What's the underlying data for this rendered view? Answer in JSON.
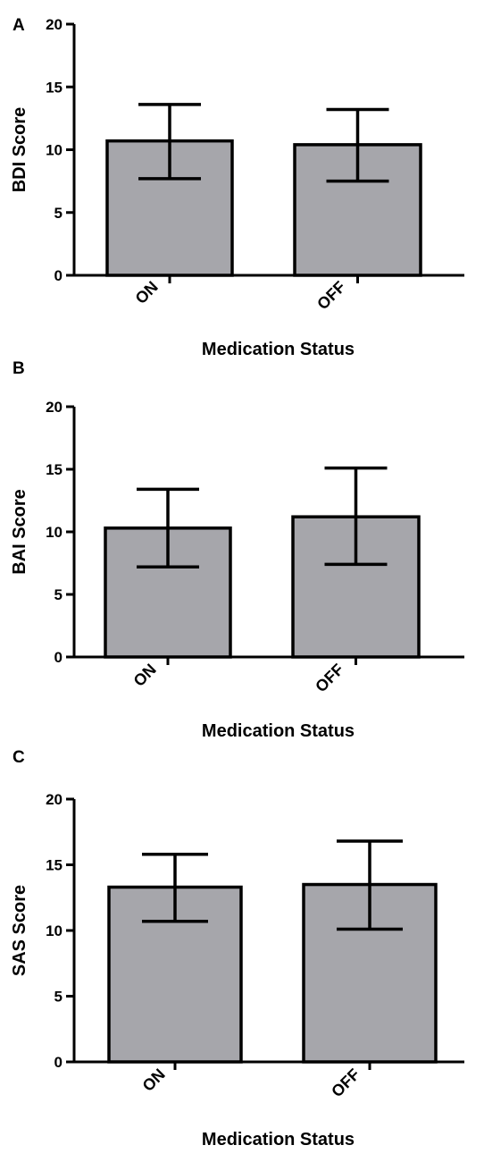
{
  "chart_data": [
    {
      "panel": "A",
      "type": "bar",
      "categories": [
        "ON",
        "OFF"
      ],
      "values": [
        10.7,
        10.4
      ],
      "error": [
        {
          "low": 7.7,
          "high": 13.6
        },
        {
          "low": 7.5,
          "high": 13.2
        }
      ],
      "xlabel": "Medication Status",
      "ylabel": "BDI Score",
      "ylim": [
        0,
        20
      ],
      "yticks": [
        0,
        5,
        10,
        15,
        20
      ],
      "bar_color": "#a6a6ab",
      "grid": false
    },
    {
      "panel": "B",
      "type": "bar",
      "categories": [
        "ON",
        "OFF"
      ],
      "values": [
        10.3,
        11.2
      ],
      "error": [
        {
          "low": 7.2,
          "high": 13.4
        },
        {
          "low": 7.4,
          "high": 15.1
        }
      ],
      "xlabel": "Medication Status",
      "ylabel": "BAI Score",
      "ylim": [
        0,
        20
      ],
      "yticks": [
        0,
        5,
        10,
        15,
        20
      ],
      "bar_color": "#a6a6ab",
      "grid": false
    },
    {
      "panel": "C",
      "type": "bar",
      "categories": [
        "ON",
        "OFF"
      ],
      "values": [
        13.3,
        13.5
      ],
      "error": [
        {
          "low": 10.7,
          "high": 15.8
        },
        {
          "low": 10.1,
          "high": 16.8
        }
      ],
      "xlabel": "Medication Status",
      "ylabel": "SAS Score",
      "ylim": [
        0,
        20
      ],
      "yticks": [
        0,
        5,
        10,
        15,
        20
      ],
      "bar_color": "#a6a6ab",
      "grid": false
    }
  ]
}
